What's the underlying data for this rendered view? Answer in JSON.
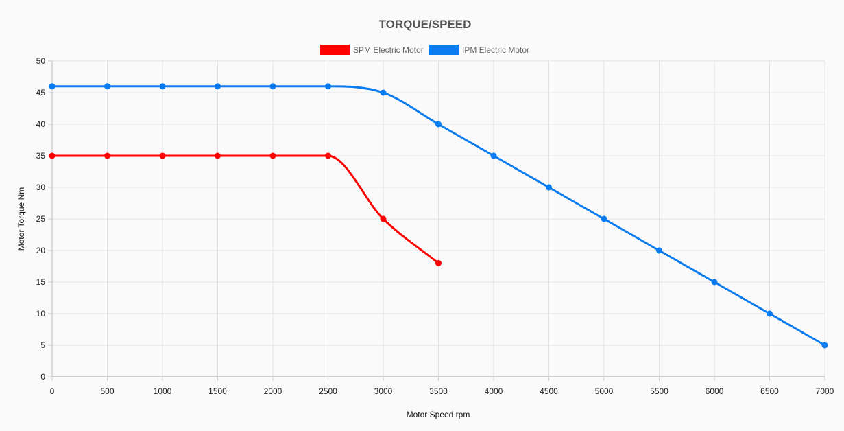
{
  "chart_data": {
    "type": "line",
    "title": "TORQUE/SPEED",
    "xlabel": "Motor Speed rpm",
    "ylabel": "Motor Torque Nm",
    "xlim": [
      0,
      7000
    ],
    "ylim": [
      0,
      50
    ],
    "x_ticks": [
      0,
      500,
      1000,
      1500,
      2000,
      2500,
      3000,
      3500,
      4000,
      4500,
      5000,
      5500,
      6000,
      6500,
      7000
    ],
    "y_ticks": [
      0,
      5,
      10,
      15,
      20,
      25,
      30,
      35,
      40,
      45,
      50
    ],
    "grid": true,
    "legend_position": "top-center",
    "series": [
      {
        "name": "SPM Electric Motor",
        "color": "#ff0000",
        "x": [
          0,
          500,
          1000,
          1500,
          2000,
          2500,
          3000,
          3500
        ],
        "y": [
          35,
          35,
          35,
          35,
          35,
          35,
          25,
          18
        ]
      },
      {
        "name": "IPM Electric Motor",
        "color": "#0a7cf0",
        "x": [
          0,
          500,
          1000,
          1500,
          2000,
          2500,
          3000,
          3500,
          4000,
          4500,
          5000,
          5500,
          6000,
          6500,
          7000
        ],
        "y": [
          46,
          46,
          46,
          46,
          46,
          46,
          45,
          40,
          35,
          30,
          25,
          20,
          15,
          10,
          5
        ]
      }
    ]
  }
}
